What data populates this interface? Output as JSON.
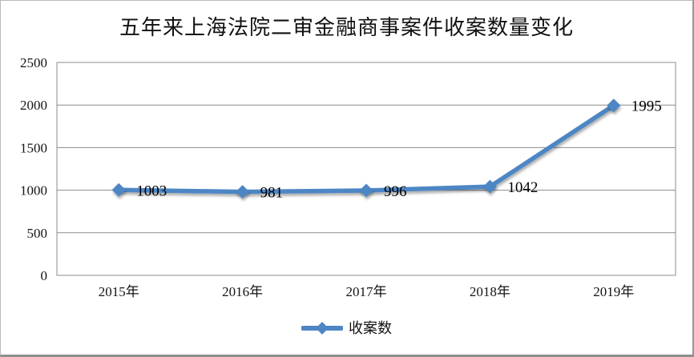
{
  "chart_data": {
    "type": "line",
    "title": "五年来上海法院二审金融商事案件收案数量变化",
    "categories": [
      "2015年",
      "2016年",
      "2017年",
      "2018年",
      "2019年"
    ],
    "series": [
      {
        "name": "收案数",
        "values": [
          1003,
          981,
          996,
          1042,
          1995
        ]
      }
    ],
    "show_data_labels": true,
    "ylim": [
      0,
      2500
    ],
    "yticks": [
      0,
      500,
      1000,
      1500,
      2000,
      2500
    ],
    "xlabel": "",
    "ylabel": "",
    "grid": true,
    "legend_position": "bottom",
    "marker": "diamond",
    "colors": {
      "line": "#4e86c5",
      "gridline": "#8c8c8c",
      "plot_border": "#8c8c8c",
      "text": "#141414"
    }
  },
  "legend": {
    "marker_icon": "line-diamond-icon",
    "label": "收案数"
  }
}
